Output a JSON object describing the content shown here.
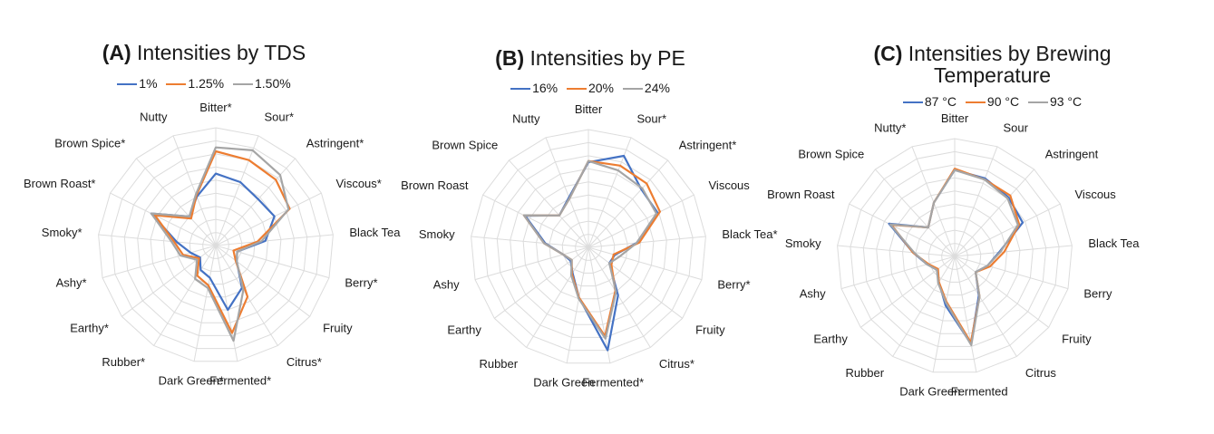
{
  "chart_data": [
    {
      "type": "radar",
      "title_prefix": "(A)",
      "title": "Intensities by TDS",
      "title_lines": [
        "Intensities by TDS"
      ],
      "categories": [
        "Bitter*",
        "Sour*",
        "Astringent*",
        "Viscous*",
        "Black Tea",
        "Berry*",
        "Fruity",
        "Citrus*",
        "Fermented*",
        "Dark Green*",
        "Rubber*",
        "Earthy*",
        "Ashy*",
        "Smoky*",
        "Brown Roast*",
        "Brown Spice*",
        "Nutty"
      ],
      "rlim": [
        0,
        9
      ],
      "series": [
        {
          "name": "1%",
          "color": "#4472C4",
          "values": [
            5.5,
            5.2,
            4.8,
            5.0,
            3.8,
            1.7,
            2.0,
            3.8,
            5.0,
            2.5,
            2.2,
            1.5,
            2.0,
            3.0,
            5.5,
            3.0,
            4.0
          ]
        },
        {
          "name": "1.25%",
          "color": "#ED7D31",
          "values": [
            7.2,
            7.0,
            6.8,
            6.3,
            3.2,
            1.4,
            1.9,
            4.6,
            6.8,
            3.1,
            2.7,
            1.6,
            2.6,
            3.2,
            5.2,
            2.8,
            4.1
          ]
        },
        {
          "name": "1.50%",
          "color": "#A5A5A5",
          "values": [
            7.5,
            7.8,
            7.3,
            6.2,
            3.5,
            1.7,
            2.0,
            4.0,
            7.4,
            3.3,
            3.0,
            1.8,
            2.8,
            3.4,
            5.5,
            3.0,
            4.2
          ]
        }
      ]
    },
    {
      "type": "radar",
      "title_prefix": "(B)",
      "title": "Intensities by PE",
      "title_lines": [
        "Intensities by PE"
      ],
      "categories": [
        "Bitter",
        "Sour*",
        "Astringent*",
        "Viscous",
        "Black Tea*",
        "Berry*",
        "Fruity",
        "Citrus*",
        "Fermented*",
        "Dark Green",
        "Rubber",
        "Earthy",
        "Ashy",
        "Smoky",
        "Brown Roast",
        "Brown Spice",
        "Nutty"
      ],
      "rlim": [
        0,
        9
      ],
      "series": [
        {
          "name": "16%",
          "color": "#4472C4",
          "values": [
            6.5,
            7.5,
            6.0,
            5.9,
            3.7,
            2.1,
            2.0,
            4.3,
            8.0,
            3.9,
            2.3,
            1.7,
            2.0,
            3.3,
            5.4,
            3.3,
            4.1
          ]
        },
        {
          "name": "20%",
          "color": "#ED7D31",
          "values": [
            6.6,
            6.7,
            6.6,
            6.1,
            3.9,
            2.0,
            2.2,
            3.9,
            6.9,
            3.9,
            2.4,
            1.6,
            2.0,
            3.4,
            5.5,
            3.3,
            4.0
          ]
        },
        {
          "name": "24%",
          "color": "#A5A5A5",
          "values": [
            6.6,
            6.3,
            6.1,
            5.8,
            3.7,
            2.5,
            2.0,
            4.0,
            7.1,
            4.0,
            2.5,
            1.6,
            2.0,
            3.4,
            5.5,
            3.3,
            4.0
          ]
        }
      ]
    },
    {
      "type": "radar",
      "title_prefix": "(C)",
      "title": "Intensities by Brewing Temperature",
      "title_lines": [
        "Intensities by Brewing",
        "Temperature"
      ],
      "categories": [
        "Bitter",
        "Sour",
        "Astringent",
        "Viscous",
        "Black Tea",
        "Berry",
        "Fruity",
        "Citrus",
        "Fermented",
        "Dark Green",
        "Rubber",
        "Earthy",
        "Ashy",
        "Smoky",
        "Brown Roast",
        "Brown Spice",
        "Nutty*"
      ],
      "rlim": [
        0,
        9
      ],
      "series": [
        {
          "name": "87 °C",
          "color": "#4472C4",
          "values": [
            6.6,
            6.4,
            6.1,
            5.8,
            3.4,
            2.6,
            2.0,
            3.5,
            6.8,
            3.8,
            2.3,
            1.7,
            2.2,
            3.2,
            5.6,
            3.0,
            4.4
          ]
        },
        {
          "name": "90 °C",
          "color": "#ED7D31",
          "values": [
            6.7,
            6.3,
            6.3,
            5.5,
            3.8,
            2.8,
            2.0,
            3.6,
            6.7,
            3.5,
            2.3,
            1.6,
            2.1,
            3.2,
            5.4,
            3.0,
            4.4
          ]
        },
        {
          "name": "93 °C",
          "color": "#A5A5A5",
          "values": [
            6.6,
            6.3,
            6.0,
            5.4,
            3.5,
            2.6,
            2.0,
            3.6,
            6.9,
            3.6,
            2.4,
            1.7,
            2.2,
            3.1,
            5.5,
            3.0,
            4.4
          ]
        }
      ]
    }
  ]
}
